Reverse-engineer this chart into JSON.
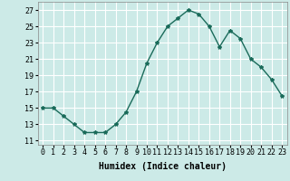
{
  "x": [
    0,
    1,
    2,
    3,
    4,
    5,
    6,
    7,
    8,
    9,
    10,
    11,
    12,
    13,
    14,
    15,
    16,
    17,
    18,
    19,
    20,
    21,
    22,
    23
  ],
  "y": [
    15,
    15,
    14,
    13,
    12,
    12,
    12,
    13,
    14.5,
    17,
    20.5,
    23,
    25,
    26,
    27,
    26.5,
    25,
    22.5,
    24.5,
    23.5,
    21,
    20,
    18.5,
    16.5
  ],
  "line_color": "#1a6b5a",
  "marker": "*",
  "marker_size": 3,
  "background_color": "#cceae7",
  "grid_color": "#ffffff",
  "xlabel": "Humidex (Indice chaleur)",
  "xlabel_fontsize": 7,
  "ylabel_ticks": [
    11,
    13,
    15,
    17,
    19,
    21,
    23,
    25,
    27
  ],
  "xlim": [
    -0.5,
    23.5
  ],
  "ylim": [
    10.5,
    28
  ],
  "xtick_labels": [
    "0",
    "1",
    "2",
    "3",
    "4",
    "5",
    "6",
    "7",
    "8",
    "9",
    "10",
    "11",
    "12",
    "13",
    "14",
    "15",
    "16",
    "17",
    "18",
    "19",
    "20",
    "21",
    "22",
    "23"
  ],
  "tick_fontsize": 6,
  "linewidth": 1.0
}
